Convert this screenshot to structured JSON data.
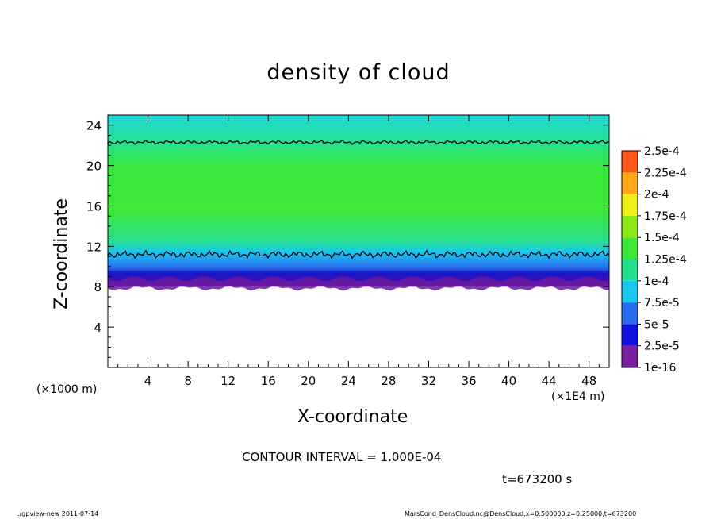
{
  "chart_data": {
    "type": "heatmap",
    "title": "density of cloud",
    "xlabel": "X-coordinate",
    "ylabel": "Z-coordinate",
    "x_unit": "(×1E4 m)",
    "z_unit": "(×1000 m)",
    "xlim": [
      0,
      50
    ],
    "ylim": [
      0,
      25
    ],
    "x_ticks": [
      4,
      8,
      12,
      16,
      20,
      24,
      28,
      32,
      36,
      40,
      44,
      48
    ],
    "y_ticks": [
      4,
      8,
      12,
      16,
      20,
      24
    ],
    "legend_placement": "right",
    "colorbar": {
      "levels": [
        "1e-16",
        "2.5e-5",
        "5e-5",
        "7.5e-5",
        "1e-4",
        "1.25e-4",
        "1.5e-4",
        "1.75e-4",
        "2e-4",
        "2.25e-4",
        "2.5e-4"
      ],
      "colors": [
        "#7a1fa2",
        "#1010e0",
        "#2a6cf0",
        "#18c8f0",
        "#22e08a",
        "#3ee838",
        "#8ee818",
        "#f0f018",
        "#ffa818",
        "#ff5818",
        "#ffb8b8"
      ]
    },
    "field_structure": {
      "cloud_base_z": 8,
      "cloud_top_z": 25,
      "contour_1e-4_lower_z": 11.2,
      "contour_1e-4_upper_z": 22.3
    },
    "contour_interval_text": "CONTOUR INTERVAL = 1.000E-04",
    "time_text": "t=673200 s"
  },
  "footer": {
    "left": "./gpview-new  2011-07-14",
    "right": "MarsCond_DensCloud.nc@DensCloud,x=0:500000,z=0:25000,t=673200"
  },
  "colors": {
    "background": "#ffffff",
    "axis": "#000000"
  }
}
